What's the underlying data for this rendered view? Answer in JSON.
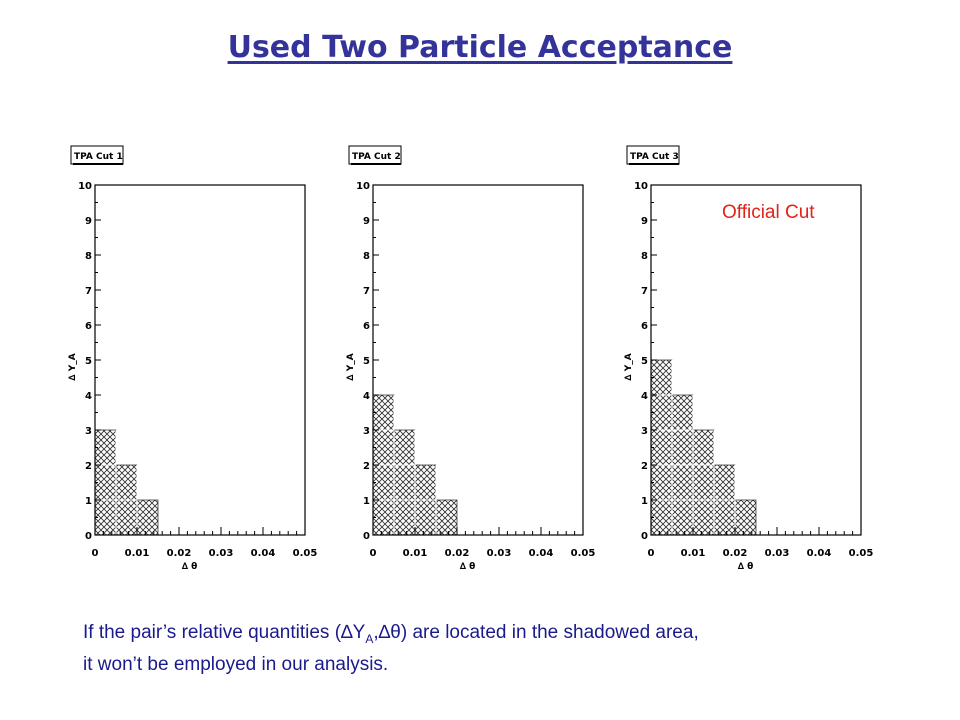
{
  "slide": {
    "title": "Used Two Particle Acceptance",
    "annotation": "Official Cut",
    "caption": {
      "part1": "If the pair’s relative quantities (",
      "dy_delta": "∆",
      "dy_symbol": "Y",
      "dy_subscript": "A",
      "comma": ",",
      "dtheta_delta": "∆",
      "dtheta_symbol": "θ",
      "part2": ") are located in the shadowed area,",
      "line2": "it won’t be employed in our analysis."
    }
  },
  "chart_data": [
    {
      "type": "bar",
      "title": "TPA Cut 1",
      "xlabel": "∆ θ",
      "ylabel": "∆ Y_A",
      "xlim": [
        0,
        0.05
      ],
      "ylim": [
        0,
        10
      ],
      "xticks": [
        "0",
        "0.01",
        "0.02",
        "0.03",
        "0.04",
        "0.05"
      ],
      "yticks": [
        "0",
        "1",
        "2",
        "3",
        "4",
        "5",
        "6",
        "7",
        "8",
        "9",
        "10"
      ],
      "bin_width": 0.005,
      "bins": [
        {
          "x0": 0.0,
          "x1": 0.005,
          "y": 3
        },
        {
          "x0": 0.005,
          "x1": 0.01,
          "y": 2
        },
        {
          "x0": 0.01,
          "x1": 0.015,
          "y": 1
        }
      ],
      "fill": "cross-hatch",
      "grid": false
    },
    {
      "type": "bar",
      "title": "TPA Cut 2",
      "xlabel": "∆ θ",
      "ylabel": "∆ Y_A",
      "xlim": [
        0,
        0.05
      ],
      "ylim": [
        0,
        10
      ],
      "xticks": [
        "0",
        "0.01",
        "0.02",
        "0.03",
        "0.04",
        "0.05"
      ],
      "yticks": [
        "0",
        "1",
        "2",
        "3",
        "4",
        "5",
        "6",
        "7",
        "8",
        "9",
        "10"
      ],
      "bin_width": 0.005,
      "bins": [
        {
          "x0": 0.0,
          "x1": 0.005,
          "y": 4
        },
        {
          "x0": 0.005,
          "x1": 0.01,
          "y": 3
        },
        {
          "x0": 0.01,
          "x1": 0.015,
          "y": 2
        },
        {
          "x0": 0.015,
          "x1": 0.02,
          "y": 1
        }
      ],
      "fill": "cross-hatch",
      "grid": false
    },
    {
      "type": "bar",
      "title": "TPA Cut 3",
      "xlabel": "∆ θ",
      "ylabel": "∆ Y_A",
      "xlim": [
        0,
        0.05
      ],
      "ylim": [
        0,
        10
      ],
      "xticks": [
        "0",
        "0.01",
        "0.02",
        "0.03",
        "0.04",
        "0.05"
      ],
      "yticks": [
        "0",
        "1",
        "2",
        "3",
        "4",
        "5",
        "6",
        "7",
        "8",
        "9",
        "10"
      ],
      "bin_width": 0.005,
      "bins": [
        {
          "x0": 0.0,
          "x1": 0.005,
          "y": 5
        },
        {
          "x0": 0.005,
          "x1": 0.01,
          "y": 4
        },
        {
          "x0": 0.01,
          "x1": 0.015,
          "y": 3
        },
        {
          "x0": 0.015,
          "x1": 0.02,
          "y": 2
        },
        {
          "x0": 0.02,
          "x1": 0.025,
          "y": 1
        }
      ],
      "fill": "cross-hatch",
      "grid": false
    }
  ]
}
